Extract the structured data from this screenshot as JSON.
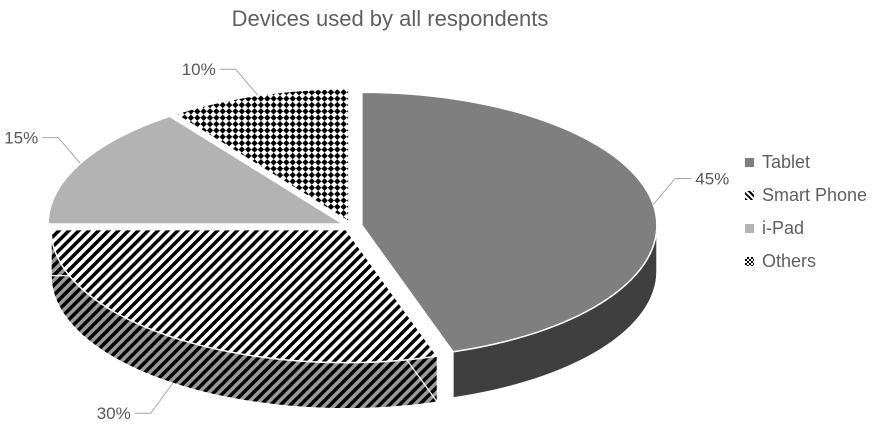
{
  "chart_data": {
    "type": "pie",
    "title": "Devices used by all respondents",
    "categories": [
      "Tablet",
      "Smart Phone",
      "i-Pad",
      "Others"
    ],
    "values": [
      45,
      30,
      15,
      10
    ],
    "value_labels": [
      "45%",
      "30%",
      "15%",
      "10%"
    ],
    "legend_position": "right",
    "style": "3d-exploded",
    "patterns": [
      "solid-gray",
      "diagonal-stripes",
      "solid-light-gray",
      "checkerboard"
    ],
    "colors": [
      "#7f7f7f",
      "#000000",
      "#b3b3b3",
      "#000000"
    ]
  }
}
